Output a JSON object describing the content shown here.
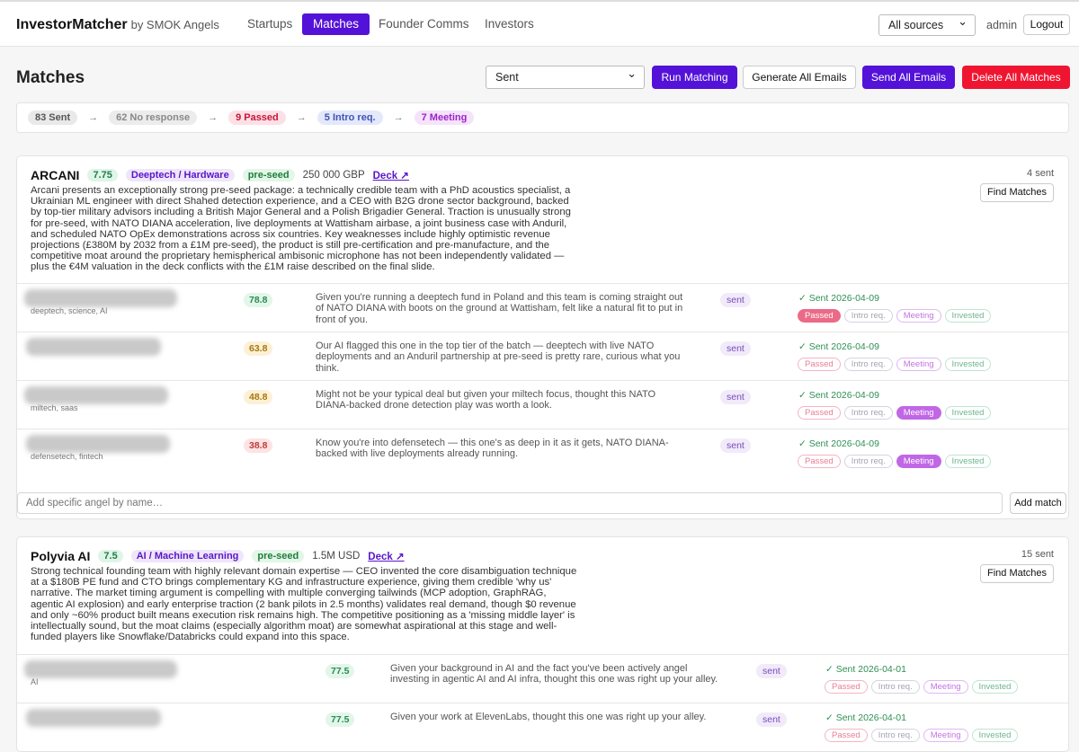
{
  "nav": {
    "brand": "InvestorMatcher",
    "brand_sub": "by SMOK Angels",
    "tabs": [
      "Startups",
      "Matches",
      "Founder Comms",
      "Investors"
    ],
    "active_tab": "Matches",
    "source_select": "All sources",
    "user": "admin",
    "logout": "Logout"
  },
  "toolbar": {
    "title": "Matches",
    "filter": "Sent",
    "buttons": [
      "Run Matching",
      "Generate All Emails",
      "Send All Emails",
      "Delete All Matches"
    ]
  },
  "funnel": {
    "separator": "→",
    "steps": [
      "83 Sent",
      "62 No response",
      "9 Passed",
      "5 Intro req.",
      "7 Meeting"
    ]
  },
  "status_options": [
    "Passed",
    "Intro req.",
    "Meeting",
    "Invested"
  ],
  "cards": [
    {
      "name": "ARCANI",
      "score": "7.75",
      "sector": "Deeptech / Hardware",
      "stage": "pre-seed",
      "amount": "250 000 GBP",
      "deck": "Deck ↗",
      "sent_count": "4 sent",
      "find": "Find Matches",
      "description": "Arcani presents an exceptionally strong pre-seed package: a technically credible team with a PhD acoustics specialist, a Ukrainian ML engineer with direct Shahed detection experience, and a CEO with B2G drone sector background, backed by top-tier military advisors including a British Major General and a Polish Brigadier General. Traction is unusually strong for pre-seed, with NATO DIANA acceleration, live deployments at Wattisham airbase, a joint business case with Anduril, and scheduled NATO OpEx demonstrations across six countries. Key weaknesses include highly optimistic revenue projections (£380M by 2032 from a £1M pre-seed), the product is still pre-certification and pre-manufacture, and the competitive moat around the proprietary hemispherical ambisonic microphone has not been independently validated — plus the €4M valuation in the deck conflicts with the £1M raise described on the final slide.",
      "rows": [
        {
          "tags": "deeptech, science, AI",
          "score": "78.8",
          "message": "Given you're running a deeptech fund in Poland and this team is coming straight out of NATO DIANA with boots on the ground at Wattisham, felt like a natural fit to put in front of you.",
          "state": "sent",
          "sent_on": "✓ Sent 2026-04-09",
          "status": "Passed"
        },
        {
          "tags": null,
          "score": "63.8",
          "message": "Our AI flagged this one in the top tier of the batch — deeptech with live NATO deployments and an Anduril partnership at pre-seed is pretty rare, curious what you think.",
          "state": "sent",
          "sent_on": "✓ Sent 2026-04-09",
          "status": null
        },
        {
          "tags": "miltech, saas",
          "score": "48.8",
          "message": "Might not be your typical deal but given your miltech focus, thought this NATO DIANA-backed drone detection play was worth a look.",
          "state": "sent",
          "sent_on": "✓ Sent 2026-04-09",
          "status": "Meeting"
        },
        {
          "tags": "defensetech, fintech",
          "score": "38.8",
          "message": "Know you're into defensetech — this one's as deep in it as it gets, NATO DIANA-backed with live deployments already running.",
          "state": "sent",
          "sent_on": "✓ Sent 2026-04-09",
          "status": "Meeting"
        }
      ],
      "add_placeholder": "Add specific angel by name…",
      "add_button": "Add match"
    },
    {
      "name": "Polyvia AI",
      "score": "7.5",
      "sector": "AI / Machine Learning",
      "stage": "pre-seed",
      "amount": "1.5M USD",
      "deck": "Deck ↗",
      "sent_count": "15 sent",
      "find": "Find Matches",
      "description": "Strong technical founding team with highly relevant domain expertise — CEO invented the core disambiguation technique at a $180B PE fund and CTO brings complementary KG and infrastructure experience, giving them credible 'why us' narrative. The market timing argument is compelling with multiple converging tailwinds (MCP adoption, GraphRAG, agentic AI explosion) and early enterprise traction (2 bank pilots in 2.5 months) validates real demand, though $0 revenue and only ~60% product built means execution risk remains high. The competitive positioning as a 'missing middle layer' is intellectually sound, but the moat claims (especially algorithm moat) are somewhat aspirational at this stage and well-funded players like Snowflake/Databricks could expand into this space.",
      "rows": [
        {
          "tags": "AI",
          "score": "77.5",
          "message": "Given your background in AI and the fact you've been actively angel investing in agentic AI and AI infra, thought this one was right up your alley.",
          "state": "sent",
          "sent_on": "✓ Sent 2026-04-01",
          "status": null
        },
        {
          "tags": null,
          "score": "77.5",
          "message": "Given your work at ElevenLabs, thought this one was right up your alley.",
          "state": "sent",
          "sent_on": "✓ Sent 2026-04-01",
          "status": null
        }
      ]
    }
  ]
}
